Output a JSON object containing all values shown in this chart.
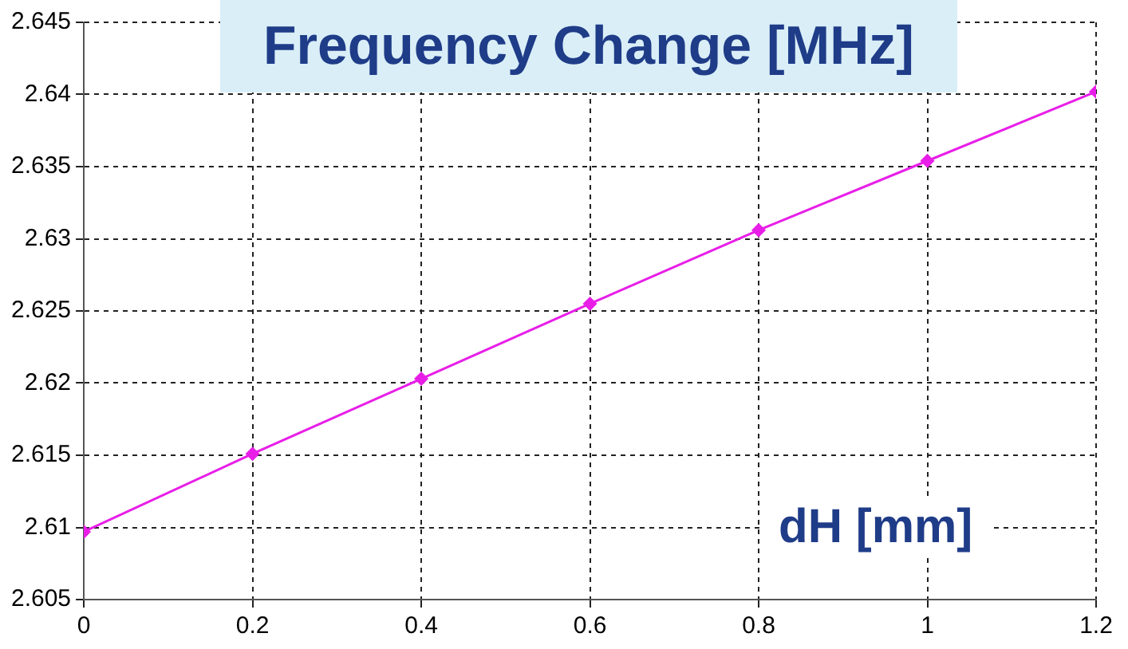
{
  "chart_data": {
    "type": "line",
    "title": "Frequency Change [MHz]",
    "xlabel": "dH [mm]",
    "x": [
      0,
      0.2,
      0.4,
      0.6,
      0.8,
      1,
      1.2
    ],
    "series": [
      {
        "color": "#e81ee8",
        "values": [
          2.6097,
          2.6151,
          2.6203,
          2.6255,
          2.6306,
          2.6354,
          2.6402
        ]
      }
    ],
    "xlim": [
      0,
      1.2
    ],
    "xticks": [
      0,
      0.2,
      0.4,
      0.6,
      0.8,
      1,
      1.2
    ],
    "ylim": [
      2.605,
      2.645
    ],
    "yticks": [
      2.605,
      2.61,
      2.615,
      2.62,
      2.625,
      2.63,
      2.635,
      2.64,
      2.645
    ],
    "grid": true,
    "legend": false,
    "marker": "diamond",
    "line_style": "solid"
  }
}
